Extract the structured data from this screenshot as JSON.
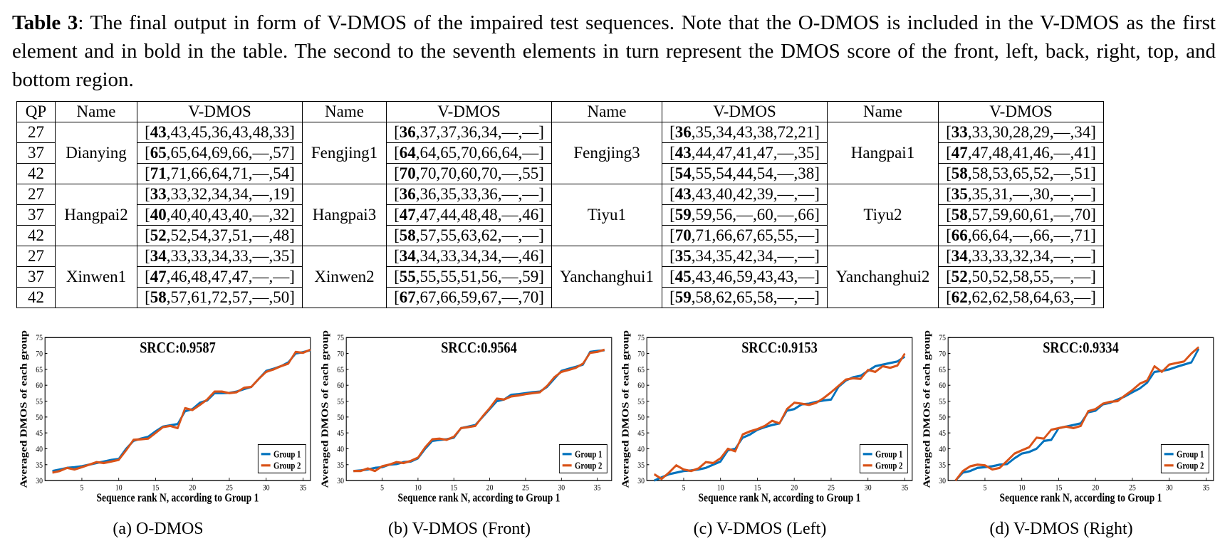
{
  "caption": {
    "label": "Table 3",
    "text": ": The final output in form of V-DMOS of the impaired test sequences. Note that the O-DMOS is included in the V-DMOS as the first element and in bold in the table. The second to the seventh elements in turn represent the DMOS score of the front, left, back, right, top, and bottom region."
  },
  "table": {
    "headers": [
      "QP",
      "Name",
      "V-DMOS",
      "Name",
      "V-DMOS",
      "Name",
      "V-DMOS",
      "Name",
      "V-DMOS"
    ],
    "groups": [
      {
        "qps": [
          "27",
          "37",
          "42"
        ],
        "cols": [
          {
            "name": "Dianying",
            "rows": [
              [
                "43",
                ",43,45,36,43,48,33]"
              ],
              [
                "65",
                ",65,64,69,66,—,57]"
              ],
              [
                "71",
                ",71,66,64,71,—,54]"
              ]
            ]
          },
          {
            "name": "Fengjing1",
            "rows": [
              [
                "36",
                ",37,37,36,34,—,—]"
              ],
              [
                "64",
                ",64,65,70,66,64,—]"
              ],
              [
                "70",
                ",70,70,60,70,—,55]"
              ]
            ]
          },
          {
            "name": "Fengjing3",
            "rows": [
              [
                "36",
                ",35,34,43,38,72,21]"
              ],
              [
                "43",
                ",44,47,41,47,—,35]"
              ],
              [
                "54",
                ",55,54,44,54,—,38]"
              ]
            ]
          },
          {
            "name": "Hangpai1",
            "rows": [
              [
                "33",
                ",33,30,28,29,—,34]"
              ],
              [
                "47",
                ",47,48,41,46,—,41]"
              ],
              [
                "58",
                ",58,53,65,52,—,51]"
              ]
            ]
          }
        ]
      },
      {
        "qps": [
          "27",
          "37",
          "42"
        ],
        "cols": [
          {
            "name": "Hangpai2",
            "rows": [
              [
                "33",
                ",33,32,34,34,—,19]"
              ],
              [
                "40",
                ",40,40,43,40,—,32]"
              ],
              [
                "52",
                ",52,54,37,51,—,48]"
              ]
            ]
          },
          {
            "name": "Hangpai3",
            "rows": [
              [
                "36",
                ",36,35,33,36,—,—]"
              ],
              [
                "47",
                ",47,44,48,48,—,46]"
              ],
              [
                "58",
                ",57,55,63,62,—,—]"
              ]
            ]
          },
          {
            "name": "Tiyu1",
            "rows": [
              [
                "43",
                ",43,40,42,39,—,—]"
              ],
              [
                "59",
                ",59,56,—,60,—,66]"
              ],
              [
                "70",
                ",71,66,67,65,55,—]"
              ]
            ]
          },
          {
            "name": "Tiyu2",
            "rows": [
              [
                "35",
                ",35,31,—,30,—,—]"
              ],
              [
                "58",
                ",57,59,60,61,—,70]"
              ],
              [
                "66",
                ",66,64,—,66,—,71]"
              ]
            ]
          }
        ]
      },
      {
        "qps": [
          "27",
          "37",
          "42"
        ],
        "cols": [
          {
            "name": "Xinwen1",
            "rows": [
              [
                "34",
                ",33,33,34,33,—,35]"
              ],
              [
                "47",
                ",46,48,47,47,—,—]"
              ],
              [
                "58",
                ",57,61,72,57,—,50]"
              ]
            ]
          },
          {
            "name": "Xinwen2",
            "rows": [
              [
                "34",
                ",34,33,34,34,—,46]"
              ],
              [
                "55",
                ",55,55,51,56,—,59]"
              ],
              [
                "67",
                ",67,66,59,67,—,70]"
              ]
            ]
          },
          {
            "name": "Yanchanghui1",
            "rows": [
              [
                "35",
                ",34,35,42,34,—,—]"
              ],
              [
                "45",
                ",43,46,59,43,43,—]"
              ],
              [
                "59",
                ",58,62,65,58,—,—]"
              ]
            ]
          },
          {
            "name": "Yanchanghui2",
            "rows": [
              [
                "34",
                ",33,33,32,34,—,—]"
              ],
              [
                "52",
                ",50,52,58,55,—,—]"
              ],
              [
                "62",
                ",62,62,58,64,63,—]"
              ]
            ]
          }
        ]
      }
    ]
  },
  "subcaptions": [
    "(a)  O-DMOS",
    "(b)  V-DMOS (Front)",
    "(c)  V-DMOS (Left)",
    "(d)  V-DMOS (Right)"
  ],
  "chart_data": [
    {
      "type": "line",
      "title": "SRCC:0.9587",
      "xlabel": "Sequence rank N, according to Group 1",
      "ylabel": "Averaged DMOS of each group",
      "xlim": [
        0,
        36
      ],
      "ylim": [
        30,
        75
      ],
      "xticks": [
        5,
        10,
        15,
        20,
        25,
        30,
        35
      ],
      "yticks": [
        30,
        35,
        40,
        45,
        50,
        55,
        60,
        65,
        70,
        75
      ],
      "legend": "bottom-right",
      "series": [
        {
          "name": "Group 1",
          "color": "#0072BD",
          "x": [
            1,
            2,
            3,
            4,
            5,
            6,
            7,
            8,
            9,
            10,
            11,
            12,
            13,
            14,
            15,
            16,
            17,
            18,
            19,
            20,
            21,
            22,
            23,
            24,
            25,
            26,
            27,
            28,
            29,
            30,
            31,
            32,
            33,
            34,
            35,
            36
          ],
          "values": [
            33,
            33.5,
            34,
            34.2,
            34.5,
            35,
            35.5,
            36,
            36.5,
            36.8,
            40,
            42.5,
            43.2,
            43.8,
            45.5,
            47,
            47.4,
            47.8,
            51.8,
            52.5,
            54.5,
            55.2,
            57.5,
            57.5,
            57.6,
            58,
            58.8,
            59.5,
            62,
            64.5,
            65.2,
            66,
            67.2,
            70,
            70.4,
            71
          ]
        },
        {
          "name": "Group 2",
          "color": "#D95319",
          "x": [
            1,
            2,
            3,
            4,
            5,
            6,
            7,
            8,
            9,
            10,
            11,
            12,
            13,
            14,
            15,
            16,
            17,
            18,
            19,
            20,
            21,
            22,
            23,
            24,
            25,
            26,
            27,
            28,
            29,
            30,
            31,
            32,
            33,
            34,
            35,
            36
          ],
          "values": [
            32.5,
            33,
            34,
            33.5,
            34.2,
            35,
            35.8,
            35.5,
            36,
            36.5,
            39.5,
            42.8,
            43,
            43.2,
            45,
            46.8,
            47.2,
            46.5,
            52.8,
            52.2,
            53.8,
            55.5,
            58,
            58,
            57.5,
            57.8,
            59.2,
            59.5,
            62,
            64.2,
            65,
            66,
            66.8,
            70.5,
            70.2,
            71.2
          ]
        }
      ]
    },
    {
      "type": "line",
      "title": "SRCC:0.9564",
      "xlabel": "Sequence rank N, according to Group 1",
      "ylabel": "Averaged DMOS of each group",
      "xlim": [
        0,
        37
      ],
      "ylim": [
        30,
        75
      ],
      "xticks": [
        5,
        10,
        15,
        20,
        25,
        30,
        35
      ],
      "yticks": [
        30,
        35,
        40,
        45,
        50,
        55,
        60,
        65,
        70,
        75
      ],
      "legend": "bottom-right",
      "series": [
        {
          "name": "Group 1",
          "color": "#0072BD",
          "x": [
            1,
            2,
            3,
            4,
            5,
            6,
            7,
            8,
            9,
            10,
            11,
            12,
            13,
            14,
            15,
            16,
            17,
            18,
            19,
            20,
            21,
            22,
            23,
            24,
            25,
            26,
            27,
            28,
            29,
            30,
            31,
            32,
            33,
            34,
            35,
            36
          ],
          "values": [
            33,
            33.2,
            33.5,
            34,
            34.2,
            35,
            35.2,
            35.8,
            36,
            37,
            40,
            42.5,
            42.8,
            43,
            43.5,
            46.5,
            47,
            47.5,
            50,
            52.5,
            55,
            55.5,
            57,
            57.2,
            57.5,
            57.8,
            58,
            59.5,
            62,
            64.5,
            65.2,
            65.8,
            66.5,
            70.5,
            70.8,
            71
          ]
        },
        {
          "name": "Group 2",
          "color": "#D95319",
          "x": [
            1,
            2,
            3,
            4,
            5,
            6,
            7,
            8,
            9,
            10,
            11,
            12,
            13,
            14,
            15,
            16,
            17,
            18,
            19,
            20,
            21,
            22,
            23,
            24,
            25,
            26,
            27,
            28,
            29,
            30,
            31,
            32,
            33,
            34,
            35,
            36
          ],
          "values": [
            33,
            33,
            33.8,
            33,
            34.5,
            35,
            35.8,
            35.5,
            36.2,
            37.2,
            40.5,
            43,
            43.2,
            42.8,
            43.8,
            46.5,
            46.8,
            47.2,
            50.2,
            52.8,
            55.8,
            55.5,
            56.5,
            56.8,
            57.2,
            57.5,
            57.8,
            59.8,
            62.5,
            64.2,
            64.8,
            65.5,
            66.8,
            70.2,
            70.5,
            71.2
          ]
        }
      ]
    },
    {
      "type": "line",
      "title": "SRCC:0.9153",
      "xlabel": "Sequence rank N, according to Group 1",
      "ylabel": "Averaged DMOS of each group",
      "xlim": [
        0,
        36
      ],
      "ylim": [
        30,
        75
      ],
      "xticks": [
        5,
        10,
        15,
        20,
        25,
        30,
        35
      ],
      "yticks": [
        30,
        35,
        40,
        45,
        50,
        55,
        60,
        65,
        70,
        75
      ],
      "legend": "bottom-right",
      "series": [
        {
          "name": "Group 1",
          "color": "#0072BD",
          "x": [
            1,
            2,
            3,
            4,
            5,
            6,
            7,
            8,
            9,
            10,
            11,
            12,
            13,
            14,
            15,
            16,
            17,
            18,
            19,
            20,
            21,
            22,
            23,
            24,
            25,
            26,
            27,
            28,
            29,
            30,
            31,
            32,
            33,
            34,
            35
          ],
          "values": [
            30,
            31,
            32,
            32.5,
            33,
            33.2,
            33.5,
            34,
            35,
            36,
            39.5,
            40,
            43.5,
            44.5,
            46,
            46.8,
            47.5,
            48,
            52,
            52.5,
            54,
            54.2,
            54.8,
            55.2,
            55.5,
            59.5,
            61.5,
            62.5,
            63,
            64.5,
            66,
            66.5,
            67,
            67.5,
            69
          ]
        },
        {
          "name": "Group 2",
          "color": "#D95319",
          "x": [
            1,
            2,
            3,
            4,
            5,
            6,
            7,
            8,
            9,
            10,
            11,
            12,
            13,
            14,
            15,
            16,
            17,
            18,
            19,
            20,
            21,
            22,
            23,
            24,
            25,
            26,
            27,
            28,
            29,
            30,
            31,
            32,
            33,
            34,
            35
          ],
          "values": [
            32,
            30.5,
            32.5,
            34.8,
            33.5,
            33,
            33.8,
            35.8,
            35.5,
            37,
            40,
            39.2,
            44.5,
            45.5,
            46.2,
            47.2,
            48.8,
            48,
            52.5,
            54.5,
            54.2,
            53.8,
            54.5,
            56,
            57.8,
            59.8,
            61.8,
            62.2,
            62,
            64.8,
            64.2,
            66,
            65.5,
            66.2,
            70
          ]
        }
      ]
    },
    {
      "type": "line",
      "title": "SRCC:0.9334",
      "xlabel": "Sequence rank N, according to Group 1",
      "ylabel": "Averaged DMOS of each group",
      "xlim": [
        0,
        36
      ],
      "ylim": [
        30,
        75
      ],
      "xticks": [
        5,
        10,
        15,
        20,
        25,
        30,
        35
      ],
      "yticks": [
        30,
        35,
        40,
        45,
        50,
        55,
        60,
        65,
        70,
        75
      ],
      "legend": "bottom-right",
      "series": [
        {
          "name": "Group 1",
          "color": "#0072BD",
          "x": [
            1,
            2,
            3,
            4,
            5,
            6,
            7,
            8,
            9,
            10,
            11,
            12,
            13,
            14,
            15,
            16,
            17,
            18,
            19,
            20,
            21,
            22,
            23,
            24,
            25,
            26,
            27,
            28,
            29,
            30,
            31,
            32,
            33,
            34
          ],
          "values": [
            30,
            32.5,
            33,
            34,
            34.2,
            34.5,
            35,
            35.2,
            37,
            38.5,
            39,
            40,
            42.5,
            42.8,
            46.5,
            47,
            47.5,
            48,
            51.5,
            52,
            54,
            54.5,
            55.5,
            56.5,
            57.8,
            59,
            60.8,
            64.2,
            64.5,
            65,
            65.8,
            66.5,
            67.2,
            71.5
          ]
        },
        {
          "name": "Group 2",
          "color": "#D95319",
          "x": [
            1,
            2,
            3,
            4,
            5,
            6,
            7,
            8,
            9,
            10,
            11,
            12,
            13,
            14,
            15,
            16,
            17,
            18,
            19,
            20,
            21,
            22,
            23,
            24,
            25,
            26,
            27,
            28,
            29,
            30,
            31,
            32,
            33,
            34
          ],
          "values": [
            29.5,
            33,
            34.5,
            35,
            34.8,
            33.5,
            34,
            36.2,
            38.5,
            39.5,
            40.5,
            43.5,
            43.2,
            46,
            46.5,
            47,
            46.5,
            47.2,
            51.8,
            52.5,
            54.2,
            54.8,
            55,
            56.8,
            58.5,
            60.5,
            61.5,
            66,
            64.2,
            66.5,
            67,
            67.5,
            70,
            72
          ]
        }
      ]
    }
  ]
}
